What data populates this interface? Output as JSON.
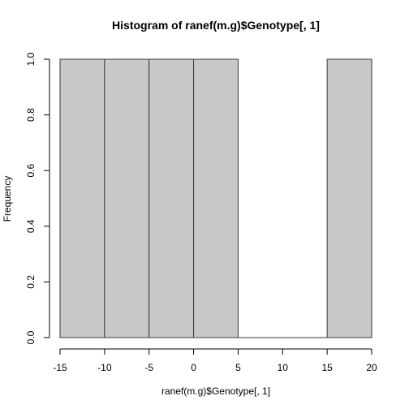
{
  "chart_data": {
    "type": "histogram",
    "title": "Histogram of ranef(m.g)$Genotype[, 1]",
    "xlabel": "ranef(m.g)$Genotype[, 1]",
    "ylabel": "Frequency",
    "bins": [
      {
        "from": -15,
        "to": -10,
        "count": 1
      },
      {
        "from": -10,
        "to": -5,
        "count": 1
      },
      {
        "from": -5,
        "to": 0,
        "count": 1
      },
      {
        "from": 0,
        "to": 5,
        "count": 1
      },
      {
        "from": 5,
        "to": 10,
        "count": 0
      },
      {
        "from": 10,
        "to": 15,
        "count": 0
      },
      {
        "from": 15,
        "to": 20,
        "count": 1
      }
    ],
    "xlim": [
      -15,
      20
    ],
    "ylim": [
      0,
      1
    ],
    "xticks": [
      -15,
      -10,
      -5,
      0,
      5,
      10,
      15,
      20
    ],
    "xtick_labels": [
      "-15",
      "-10",
      "-5",
      "0",
      "5",
      "10",
      "15",
      "20"
    ],
    "yticks": [
      0,
      0.2,
      0.4,
      0.6,
      0.8,
      1
    ],
    "ytick_labels": [
      "0.0",
      "0.2",
      "0.4",
      "0.6",
      "0.8",
      "1.0"
    ],
    "colors": {
      "bar_fill": "#c8c8c8",
      "bar_stroke": "#3a3a3a"
    }
  }
}
